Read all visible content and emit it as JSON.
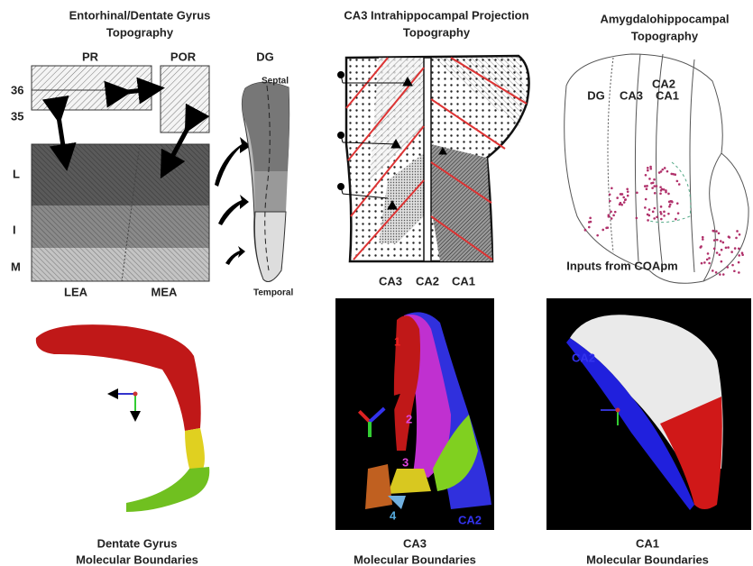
{
  "panels": [
    {
      "title": [
        "Entorhinal/Dentate Gyrus",
        "Topography"
      ],
      "labels": [
        "PR",
        "POR",
        "DG",
        "36",
        "35",
        "L",
        "I",
        "M",
        "LEA",
        "MEA",
        "Septal",
        "Temporal"
      ]
    },
    {
      "title": [
        "CA3 Intrahippocampal Projection",
        "Topography"
      ],
      "labels": [
        "CA3",
        "CA2",
        "CA1"
      ]
    },
    {
      "title": [
        "Amygdalohippocampal",
        "Topography"
      ],
      "labels": [
        "CA2",
        "DG",
        "CA3",
        "CA1",
        "Inputs from COApm"
      ]
    },
    {
      "caption": [
        "Dentate Gyrus",
        "Molecular Boundaries"
      ]
    },
    {
      "labels": [
        "1",
        "2",
        "3",
        "4",
        "CA2"
      ],
      "caption": [
        "CA3",
        "Molecular Boundaries"
      ]
    },
    {
      "labels": [
        "CA2"
      ],
      "caption": [
        "CA1",
        "Molecular Boundaries"
      ]
    }
  ]
}
